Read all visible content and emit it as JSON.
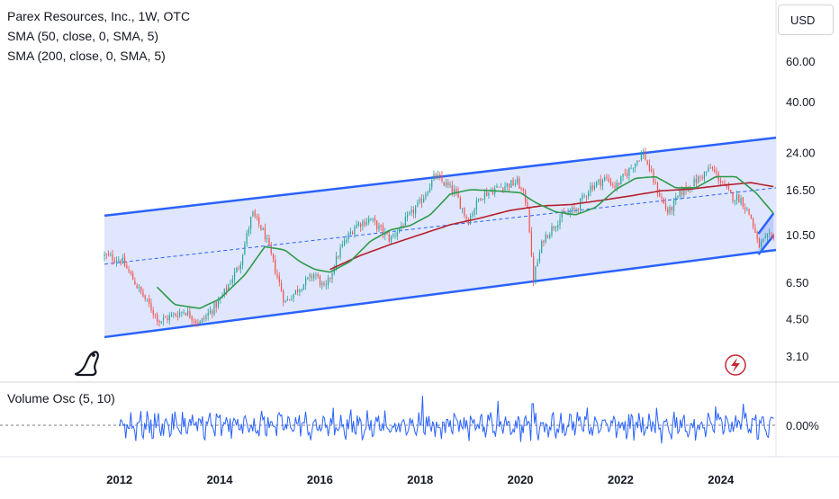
{
  "legend": {
    "title": "Parex Resources, Inc., 1W, OTC",
    "sma50": "SMA (50, close, 0, SMA, 5)",
    "sma200": "SMA (200, close, 0, SMA, 5)"
  },
  "currency_button": "USD",
  "oscillator": {
    "label": "Volume Osc (5, 10)",
    "zero_label": "0.00%"
  },
  "colors": {
    "up": "#26a69a",
    "down": "#ef5350",
    "sma50": "#2e9a4c",
    "sma200": "#b5202e",
    "channel": "#2962ff",
    "channel_fill": "#dde3fd",
    "osc_line": "#2962ff",
    "flash_icon": "#c3282f"
  },
  "icons": {
    "logo": "dinosaur-logo-icon",
    "flash": "lightning-flash-icon"
  },
  "chart_data": {
    "type": "candlestick",
    "scale": "log",
    "y_ticks": [
      60,
      40,
      24,
      16.5,
      10.5,
      6.5,
      4.5,
      3.1
    ],
    "y_tick_labels": [
      "60.00",
      "40.00",
      "24.00",
      "16.50",
      "10.50",
      "6.50",
      "4.50",
      "3.10"
    ],
    "x_ticks": [
      "2012",
      "2014",
      "2016",
      "2018",
      "2020",
      "2022",
      "2024"
    ],
    "x_range": [
      2011.7,
      2025.1
    ],
    "price_anchors": [
      [
        2011.7,
        8.5
      ],
      [
        2012.05,
        8.1
      ],
      [
        2012.4,
        6.0
      ],
      [
        2012.8,
        4.4
      ],
      [
        2013.3,
        4.9
      ],
      [
        2013.6,
        4.3
      ],
      [
        2014.0,
        5.4
      ],
      [
        2014.4,
        7.8
      ],
      [
        2014.65,
        13.0
      ],
      [
        2014.9,
        10.5
      ],
      [
        2015.1,
        7.5
      ],
      [
        2015.3,
        5.3
      ],
      [
        2015.6,
        6.2
      ],
      [
        2015.9,
        7.1
      ],
      [
        2016.1,
        6.0
      ],
      [
        2016.4,
        9.0
      ],
      [
        2016.7,
        11.5
      ],
      [
        2017.0,
        12.3
      ],
      [
        2017.4,
        10.0
      ],
      [
        2017.7,
        12.0
      ],
      [
        2018.0,
        14.5
      ],
      [
        2018.3,
        19.0
      ],
      [
        2018.7,
        16.0
      ],
      [
        2018.95,
        12.0
      ],
      [
        2019.2,
        15.5
      ],
      [
        2019.6,
        17.0
      ],
      [
        2019.95,
        17.8
      ],
      [
        2020.15,
        14.0
      ],
      [
        2020.25,
        6.6
      ],
      [
        2020.45,
        10.0
      ],
      [
        2020.8,
        12.5
      ],
      [
        2021.1,
        13.5
      ],
      [
        2021.4,
        17.0
      ],
      [
        2021.7,
        18.5
      ],
      [
        2021.9,
        17.0
      ],
      [
        2022.2,
        20.5
      ],
      [
        2022.45,
        24.0
      ],
      [
        2022.7,
        17.0
      ],
      [
        2022.95,
        13.0
      ],
      [
        2023.2,
        16.0
      ],
      [
        2023.5,
        18.0
      ],
      [
        2023.8,
        20.5
      ],
      [
        2024.0,
        18.0
      ],
      [
        2024.2,
        15.5
      ],
      [
        2024.4,
        15.0
      ],
      [
        2024.6,
        12.5
      ],
      [
        2024.75,
        9.3
      ],
      [
        2024.9,
        10.0
      ],
      [
        2025.05,
        10.5
      ]
    ],
    "sma50_anchors": [
      [
        2012.75,
        6.2
      ],
      [
        2013.1,
        5.2
      ],
      [
        2013.6,
        5.0
      ],
      [
        2014.0,
        5.5
      ],
      [
        2014.5,
        7.0
      ],
      [
        2014.9,
        9.3
      ],
      [
        2015.3,
        9.0
      ],
      [
        2015.6,
        8.0
      ],
      [
        2015.9,
        7.4
      ],
      [
        2016.2,
        7.2
      ],
      [
        2016.6,
        8.0
      ],
      [
        2017.0,
        9.8
      ],
      [
        2017.4,
        11.0
      ],
      [
        2017.8,
        11.5
      ],
      [
        2018.2,
        12.8
      ],
      [
        2018.6,
        15.8
      ],
      [
        2019.0,
        16.5
      ],
      [
        2019.5,
        16.3
      ],
      [
        2020.0,
        16.0
      ],
      [
        2020.3,
        14.5
      ],
      [
        2020.7,
        13.2
      ],
      [
        2021.1,
        12.8
      ],
      [
        2021.5,
        13.8
      ],
      [
        2021.9,
        16.5
      ],
      [
        2022.3,
        18.5
      ],
      [
        2022.7,
        18.8
      ],
      [
        2023.1,
        16.8
      ],
      [
        2023.5,
        16.8
      ],
      [
        2023.9,
        18.8
      ],
      [
        2024.3,
        18.8
      ],
      [
        2024.7,
        16.0
      ],
      [
        2025.05,
        13.0
      ]
    ],
    "sma200_anchors": [
      [
        2016.2,
        7.4
      ],
      [
        2016.8,
        8.5
      ],
      [
        2017.4,
        9.5
      ],
      [
        2018.0,
        10.5
      ],
      [
        2018.6,
        11.6
      ],
      [
        2019.2,
        12.4
      ],
      [
        2019.8,
        13.4
      ],
      [
        2020.4,
        14.0
      ],
      [
        2021.0,
        14.2
      ],
      [
        2021.6,
        14.8
      ],
      [
        2022.2,
        15.5
      ],
      [
        2022.8,
        16.3
      ],
      [
        2023.4,
        16.6
      ],
      [
        2024.0,
        17.2
      ],
      [
        2024.6,
        17.7
      ],
      [
        2025.05,
        17.0
      ]
    ],
    "channel": {
      "upper": [
        [
          2011.7,
          12.7
        ],
        [
          2025.1,
          27.8
        ]
      ],
      "lower": [
        [
          2011.7,
          3.75
        ],
        [
          2025.1,
          9.0
        ]
      ],
      "mid": [
        [
          2011.7,
          7.8
        ],
        [
          2025.1,
          16.8
        ]
      ]
    },
    "small_channel": {
      "upper": [
        [
          2024.75,
          10.6
        ],
        [
          2025.05,
          13.0
        ]
      ],
      "lower": [
        [
          2024.75,
          8.6
        ],
        [
          2025.05,
          10.4
        ]
      ]
    },
    "volume_oscillator": {
      "x_range": [
        2012.0,
        2025.05
      ],
      "zero": 0,
      "range_percent": [
        -60,
        60
      ],
      "spikes": [
        [
          2018.05,
          55
        ],
        [
          2019.55,
          45
        ],
        [
          2020.25,
          40
        ],
        [
          2023.9,
          35
        ],
        [
          2024.45,
          40
        ]
      ]
    }
  }
}
